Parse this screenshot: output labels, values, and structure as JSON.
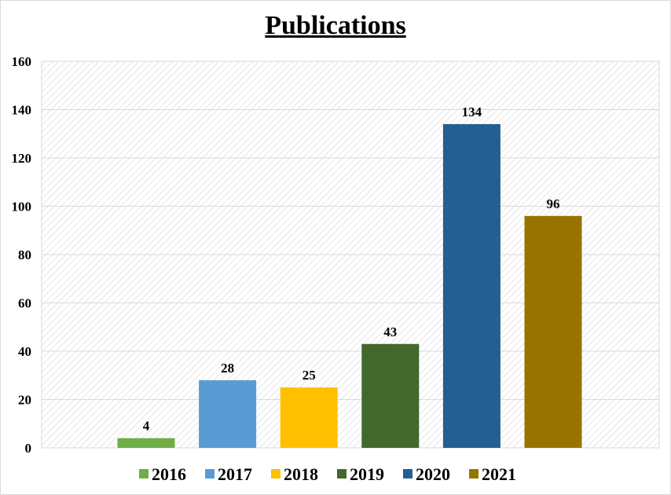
{
  "chart_data": {
    "type": "bar",
    "title": "Publications",
    "categories": [
      "2016",
      "2017",
      "2018",
      "2019",
      "2020",
      "2021"
    ],
    "values": [
      4,
      28,
      25,
      43,
      134,
      96
    ],
    "colors": [
      "#70ad47",
      "#5b9bd5",
      "#ffc000",
      "#43682b",
      "#255e91",
      "#997300"
    ],
    "ylim": [
      0,
      160
    ],
    "yticks": [
      0,
      20,
      40,
      60,
      80,
      100,
      120,
      140,
      160
    ],
    "grid": true,
    "legend": "bottom",
    "data_labels": true
  }
}
